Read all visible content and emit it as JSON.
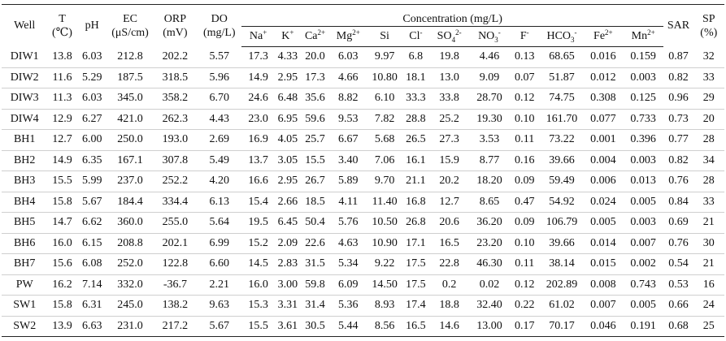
{
  "headers": {
    "well": "Well",
    "T": {
      "line1": "T",
      "line2": "(℃)"
    },
    "pH": "pH",
    "EC": {
      "line1": "EC",
      "line2": "(μS/cm)"
    },
    "ORP": {
      "line1": "ORP",
      "line2": "(mV)"
    },
    "DO": {
      "line1": "DO",
      "line2": "(mg/L)"
    },
    "concentration": "Concentration (mg/L)",
    "ions": [
      {
        "base": "Na",
        "sup": "+"
      },
      {
        "base": "K",
        "sup": "+"
      },
      {
        "base": "Ca",
        "sup": "2+"
      },
      {
        "base": "Mg",
        "sup": "2+"
      },
      {
        "base": "Si",
        "sup": ""
      },
      {
        "base": "Cl",
        "sup": "-"
      },
      {
        "base": "SO",
        "sub": "4",
        "sup": "2-"
      },
      {
        "base": "NO",
        "sub": "3",
        "sup": "-"
      },
      {
        "base": "F",
        "sup": "-"
      },
      {
        "base": "HCO",
        "sub": "3",
        "sup": "-"
      },
      {
        "base": "Fe",
        "sup": "2+"
      },
      {
        "base": "Mn",
        "sup": "2+"
      }
    ],
    "SAR": "SAR",
    "SP": {
      "line1": "SP",
      "line2": "(%)"
    }
  },
  "rows": [
    [
      "DIW1",
      "13.8",
      "6.03",
      "212.8",
      "202.2",
      "5.57",
      "17.3",
      "4.33",
      "20.0",
      "6.03",
      "9.97",
      "6.8",
      "19.8",
      "4.46",
      "0.13",
      "68.65",
      "0.016",
      "0.159",
      "0.87",
      "32"
    ],
    [
      "DIW2",
      "11.6",
      "5.29",
      "187.5",
      "318.5",
      "5.96",
      "14.9",
      "2.95",
      "17.3",
      "4.66",
      "10.80",
      "18.1",
      "13.0",
      "9.09",
      "0.07",
      "51.87",
      "0.012",
      "0.003",
      "0.82",
      "33"
    ],
    [
      "DIW3",
      "11.3",
      "6.03",
      "345.0",
      "358.2",
      "6.70",
      "24.6",
      "6.48",
      "35.6",
      "8.82",
      "6.10",
      "33.3",
      "33.8",
      "28.70",
      "0.12",
      "74.75",
      "0.308",
      "0.125",
      "0.96",
      "29"
    ],
    [
      "DIW4",
      "12.9",
      "6.27",
      "421.0",
      "262.3",
      "4.43",
      "23.0",
      "6.95",
      "59.6",
      "9.53",
      "7.82",
      "28.8",
      "25.2",
      "19.30",
      "0.10",
      "161.70",
      "0.077",
      "0.733",
      "0.73",
      "20"
    ],
    [
      "BH1",
      "12.7",
      "6.00",
      "250.0",
      "193.0",
      "2.69",
      "16.9",
      "4.05",
      "25.7",
      "6.67",
      "5.68",
      "26.5",
      "27.3",
      "3.53",
      "0.11",
      "73.22",
      "0.001",
      "0.396",
      "0.77",
      "28"
    ],
    [
      "BH2",
      "14.9",
      "6.35",
      "167.1",
      "307.8",
      "5.49",
      "13.7",
      "3.05",
      "15.5",
      "3.40",
      "7.06",
      "16.1",
      "15.9",
      "8.77",
      "0.16",
      "39.66",
      "0.004",
      "0.003",
      "0.82",
      "34"
    ],
    [
      "BH3",
      "15.5",
      "5.99",
      "237.0",
      "252.2",
      "4.20",
      "16.6",
      "2.95",
      "26.7",
      "5.89",
      "9.70",
      "21.1",
      "20.2",
      "18.20",
      "0.09",
      "59.49",
      "0.006",
      "0.013",
      "0.76",
      "28"
    ],
    [
      "BH4",
      "15.8",
      "5.67",
      "184.4",
      "334.4",
      "6.13",
      "15.4",
      "2.66",
      "18.5",
      "4.11",
      "11.40",
      "16.8",
      "12.7",
      "8.65",
      "0.47",
      "54.92",
      "0.024",
      "0.005",
      "0.84",
      "33"
    ],
    [
      "BH5",
      "14.7",
      "6.62",
      "360.0",
      "255.0",
      "5.64",
      "19.5",
      "6.45",
      "50.4",
      "5.76",
      "10.50",
      "26.8",
      "20.6",
      "36.20",
      "0.09",
      "106.79",
      "0.005",
      "0.003",
      "0.69",
      "21"
    ],
    [
      "BH6",
      "16.0",
      "6.15",
      "208.8",
      "202.1",
      "6.99",
      "15.2",
      "2.09",
      "22.6",
      "4.63",
      "10.90",
      "17.1",
      "16.5",
      "23.20",
      "0.10",
      "39.66",
      "0.014",
      "0.007",
      "0.76",
      "30"
    ],
    [
      "BH7",
      "15.6",
      "6.08",
      "252.0",
      "122.8",
      "6.60",
      "14.5",
      "2.83",
      "31.5",
      "5.34",
      "9.22",
      "17.5",
      "22.8",
      "46.30",
      "0.11",
      "38.14",
      "0.015",
      "0.002",
      "0.54",
      "21"
    ],
    [
      "PW",
      "16.2",
      "7.14",
      "332.0",
      "-36.7",
      "2.21",
      "16.0",
      "3.00",
      "59.8",
      "6.09",
      "14.50",
      "17.5",
      "0.2",
      "0.02",
      "0.12",
      "202.89",
      "0.008",
      "0.743",
      "0.53",
      "16"
    ],
    [
      "SW1",
      "15.8",
      "6.31",
      "245.0",
      "138.2",
      "9.63",
      "15.3",
      "3.31",
      "31.4",
      "5.36",
      "8.93",
      "17.4",
      "18.8",
      "32.40",
      "0.22",
      "61.02",
      "0.007",
      "0.005",
      "0.66",
      "24"
    ],
    [
      "SW2",
      "13.9",
      "6.63",
      "231.0",
      "217.2",
      "5.67",
      "15.5",
      "3.61",
      "30.5",
      "5.44",
      "8.56",
      "16.5",
      "14.6",
      "13.00",
      "0.17",
      "70.17",
      "0.046",
      "0.191",
      "0.68",
      "25"
    ]
  ]
}
